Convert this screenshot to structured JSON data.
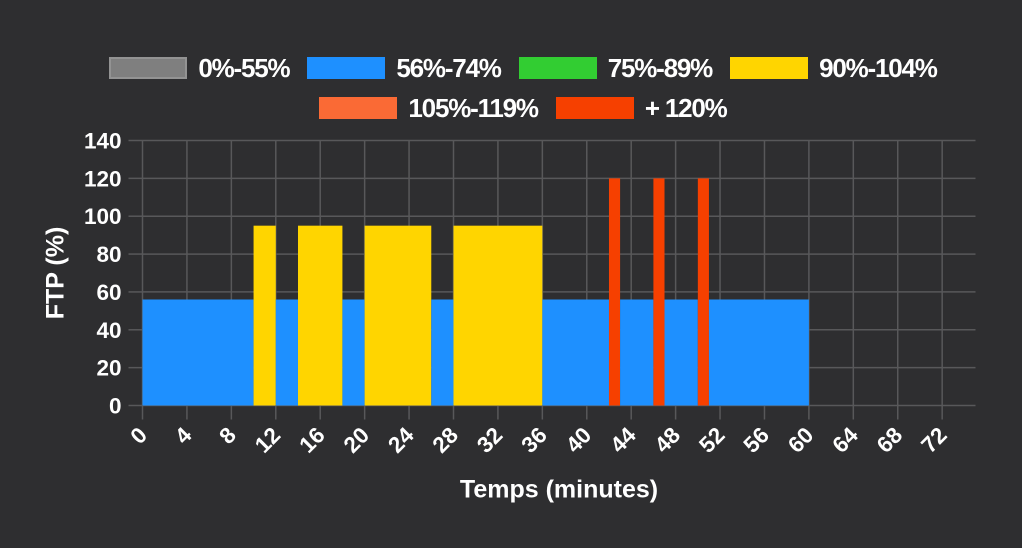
{
  "colors": {
    "background": "#2E2E30",
    "grid": "#58585A",
    "text": "#FFFFFF"
  },
  "legend": {
    "rows": [
      [
        {
          "label": "0%-55%",
          "zone": "gray"
        },
        {
          "label": "56%-74%",
          "zone": "blue"
        },
        {
          "label": "75%-89%",
          "zone": "green"
        },
        {
          "label": "90%-104%",
          "zone": "yellow"
        }
      ],
      [
        {
          "label": "105%-119%",
          "zone": "orange"
        },
        {
          "label": "+ 120%",
          "zone": "red"
        }
      ]
    ]
  },
  "chart_data": {
    "type": "bar",
    "title": "",
    "xlabel": "Temps (minutes)",
    "ylabel": "FTP (%)",
    "xlim": [
      0,
      75
    ],
    "ylim": [
      0,
      140
    ],
    "x_ticks": [
      0,
      4,
      8,
      12,
      16,
      20,
      24,
      28,
      32,
      36,
      40,
      44,
      48,
      52,
      56,
      60,
      64,
      68,
      72
    ],
    "y_ticks": [
      0,
      20,
      40,
      60,
      80,
      100,
      120,
      140
    ],
    "grid": true,
    "legend_position": "top",
    "zone_colors": {
      "gray": {
        "fill": "#7F7F7F",
        "border": "#939393"
      },
      "blue": {
        "fill": "#1E90FF",
        "border": "#1E90FF"
      },
      "green": {
        "fill": "#32CD32",
        "border": "#32CD32"
      },
      "yellow": {
        "fill": "#FFD500",
        "border": "#FFD500"
      },
      "orange": {
        "fill": "#FA6A35",
        "border": "#FA6A35"
      },
      "red": {
        "fill": "#F64000",
        "border": "#F64000"
      }
    },
    "segments": [
      {
        "start": 0,
        "end": 10,
        "ftp": 56,
        "zone": "blue"
      },
      {
        "start": 10,
        "end": 12,
        "ftp": 95,
        "zone": "yellow"
      },
      {
        "start": 12,
        "end": 14,
        "ftp": 56,
        "zone": "blue"
      },
      {
        "start": 14,
        "end": 18,
        "ftp": 95,
        "zone": "yellow"
      },
      {
        "start": 18,
        "end": 20,
        "ftp": 56,
        "zone": "blue"
      },
      {
        "start": 20,
        "end": 26,
        "ftp": 95,
        "zone": "yellow"
      },
      {
        "start": 26,
        "end": 28,
        "ftp": 56,
        "zone": "blue"
      },
      {
        "start": 28,
        "end": 36,
        "ftp": 95,
        "zone": "yellow"
      },
      {
        "start": 36,
        "end": 42,
        "ftp": 56,
        "zone": "blue"
      },
      {
        "start": 42,
        "end": 43,
        "ftp": 120,
        "zone": "red"
      },
      {
        "start": 43,
        "end": 46,
        "ftp": 56,
        "zone": "blue"
      },
      {
        "start": 46,
        "end": 47,
        "ftp": 120,
        "zone": "red"
      },
      {
        "start": 47,
        "end": 50,
        "ftp": 56,
        "zone": "blue"
      },
      {
        "start": 50,
        "end": 51,
        "ftp": 120,
        "zone": "red"
      },
      {
        "start": 51,
        "end": 60,
        "ftp": 56,
        "zone": "blue"
      }
    ]
  }
}
